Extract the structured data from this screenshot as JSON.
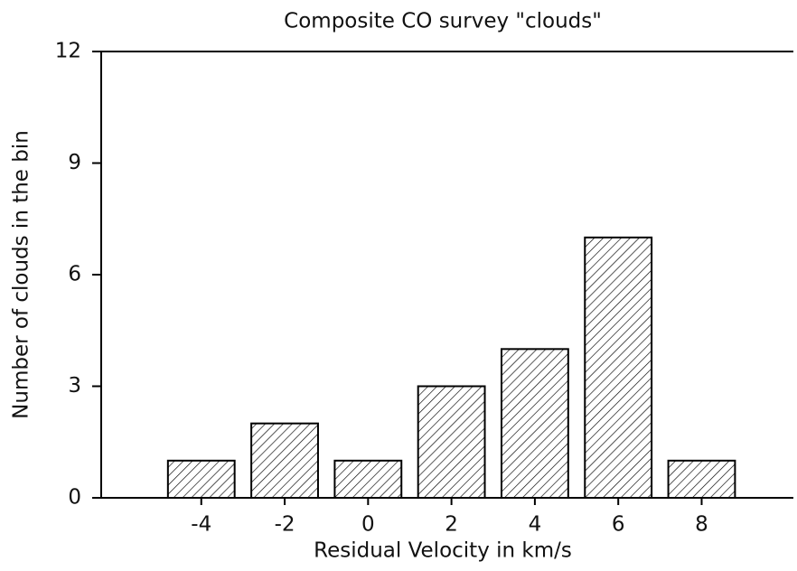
{
  "chart_data": {
    "type": "bar",
    "title": "Composite CO survey \"clouds\"",
    "x_label": "Residual Velocity in km/s",
    "y_label": "Number of clouds in the bin",
    "x": [
      -4,
      -2,
      0,
      2,
      4,
      6,
      8
    ],
    "values": [
      1,
      2,
      1,
      3,
      4,
      7,
      1
    ],
    "xlim": [
      -6.4,
      10.2
    ],
    "xticks": [
      -4,
      -2,
      0,
      2,
      4,
      6,
      8
    ],
    "ylim": [
      0,
      12
    ],
    "yticks": [
      0,
      3,
      6,
      9,
      12
    ],
    "color": "#000000"
  }
}
